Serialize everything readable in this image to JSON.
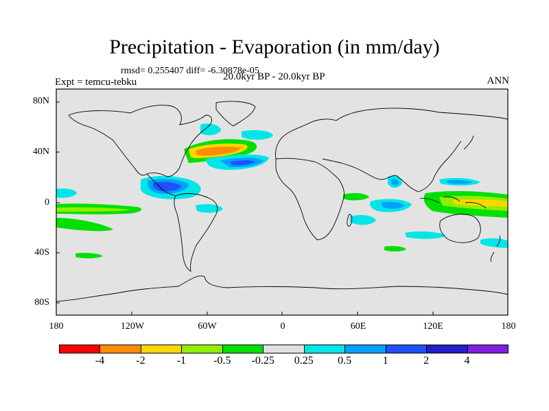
{
  "title": "Precipitation - Evaporation (in mm/day)",
  "stats": "rmsd= 0.255407 diff= -6.30878e-05",
  "expt": "Expt = temcu-tebku",
  "period": "20.0kyr BP - 20.0kyr BP",
  "season": "ANN",
  "lat_labels": [
    "80N",
    "40N",
    "0",
    "40S",
    "80S"
  ],
  "lon_labels": [
    "180",
    "120W",
    "60W",
    "0",
    "60E",
    "120E",
    "180"
  ],
  "colorbar": {
    "colors": [
      "#ff0000",
      "#ff8c00",
      "#ffd700",
      "#90ee00",
      "#00e000",
      "#e0e0e0",
      "#00e6e6",
      "#00a0ff",
      "#2050ff",
      "#2020c8",
      "#8020e0"
    ],
    "labels": [
      "-4",
      "-2",
      "-1",
      "-0.5",
      "-0.25",
      "0.25",
      "0.5",
      "1",
      "2",
      "4"
    ]
  },
  "map": {
    "ocean_fill": "#e3e3e3",
    "coast_color": "#000000"
  }
}
